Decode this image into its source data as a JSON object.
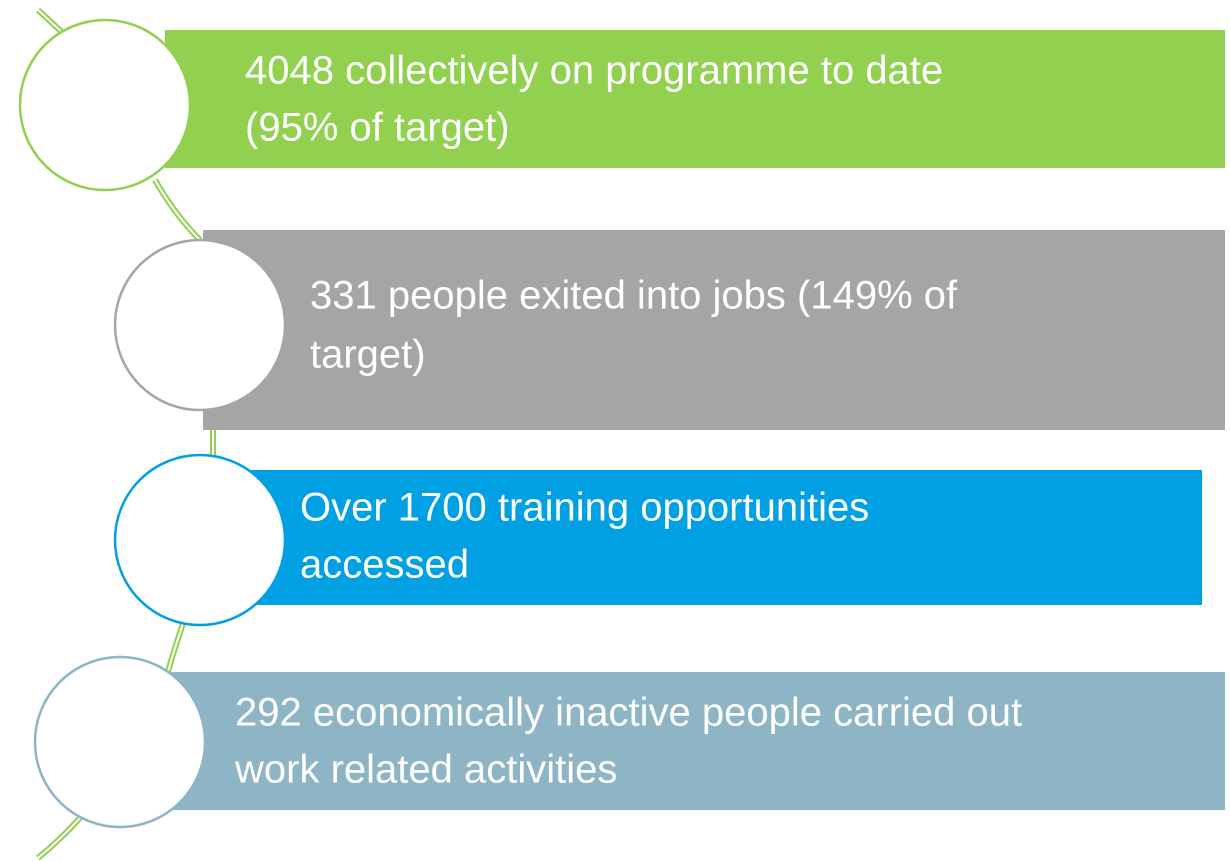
{
  "items": [
    {
      "lines": [
        "4048 collectively on programme to date",
        "(95% of target)"
      ]
    },
    {
      "lines": [
        "331 people exited into jobs (149% of",
        "target)"
      ]
    },
    {
      "lines": [
        "Over 1700 training opportunities",
        "accessed"
      ]
    },
    {
      "lines": [
        "292 economically inactive people carried out",
        "work related activities"
      ]
    }
  ]
}
